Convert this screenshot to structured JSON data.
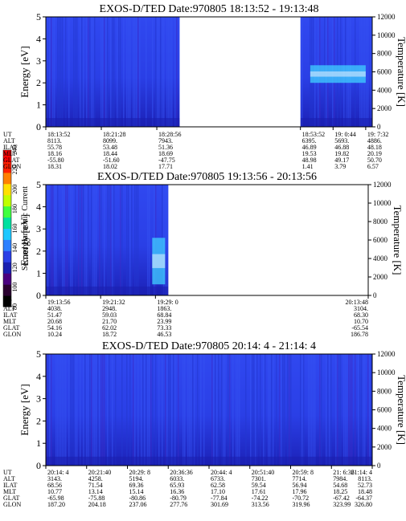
{
  "colors": {
    "background": "#ffffff",
    "spectrogram_base": "#2a3fe6",
    "spectrogram_low": "#1a1fb0",
    "spectrogram_mid": "#2d80ff",
    "band_light": "#40d0ff",
    "band_white": "#e8f0ff",
    "data_gap": "#ffffff",
    "axis": "#000000"
  },
  "colorbar": {
    "label": "Second Harmonic Current",
    "ticks": [
      "240",
      "220",
      "200",
      "180",
      "160",
      "140",
      "120",
      "100",
      "80"
    ],
    "colors": [
      "#000000",
      "#2a0030",
      "#4a0080",
      "#1a1fb0",
      "#2a3fe6",
      "#2d80ff",
      "#1ec8ff",
      "#00e0a0",
      "#40ff40",
      "#c0ff00",
      "#ffe000",
      "#ff8000",
      "#ff2000",
      "#ff0000"
    ]
  },
  "chart_data": [
    {
      "type": "heatmap",
      "title": "EXOS-D/TED   Date:970805   18:13:52 - 19:13:48",
      "ylabel": "Energy [eV]",
      "y2label": "Temperature [K]",
      "ylim": [
        0,
        5
      ],
      "y2lim": [
        0,
        12000
      ],
      "yticks": [
        "0",
        "1",
        "2",
        "3",
        "4",
        "5"
      ],
      "y2ticks": [
        "0",
        "2000",
        "4000",
        "6000",
        "8000",
        "10000",
        "12000"
      ],
      "data_gaps": [
        [
          0.41,
          0.78
        ]
      ],
      "bright_band": {
        "x_start": 0.81,
        "x_end": 0.98,
        "energy_low": 2.0,
        "energy_high": 2.8
      },
      "table": {
        "labels": [
          "UT",
          "ALT",
          "ILAT",
          "MLT",
          "GLAT",
          "GLON"
        ],
        "columns": [
          {
            "pos": 0.0,
            "values": [
              "18:13:52",
              "8113.",
              "55.78",
              "18.16",
              "-55.80",
              "18.31"
            ]
          },
          {
            "pos": 0.17,
            "values": [
              "18:21:28",
              "8099.",
              "53.48",
              "18.44",
              "-51.60",
              "18.02"
            ]
          },
          {
            "pos": 0.34,
            "values": [
              "18:28:56",
              "7943.",
              "51.36",
              "18.69",
              "-47.75",
              "17.71"
            ]
          },
          {
            "pos": 0.78,
            "values": [
              "18:53:52",
              "6395.",
              "46.89",
              "19.53",
              "48.98",
              "1.41"
            ]
          },
          {
            "pos": 0.88,
            "values": [
              "19: 0:44",
              "5693.",
              "46.88",
              "19.82",
              "49.17",
              "3.79"
            ]
          },
          {
            "pos": 0.98,
            "values": [
              "19: 7:32",
              "4886.",
              "48.18",
              "20.19",
              "50.70",
              "6.57"
            ]
          }
        ]
      }
    },
    {
      "type": "heatmap",
      "title": "EXOS-D/TED   Date:970805   19:13:56 - 20:13:56",
      "ylabel": "Energy [eV]",
      "y2label": "Temperature [K]",
      "ylim": [
        0,
        5
      ],
      "y2lim": [
        0,
        12000
      ],
      "yticks": [
        "0",
        "1",
        "2",
        "3",
        "4",
        "5"
      ],
      "y2ticks": [
        "0",
        "2000",
        "4000",
        "6000",
        "8000",
        "10000",
        "12000"
      ],
      "data_gaps": [
        [
          0.38,
          1.0
        ]
      ],
      "bright_band": {
        "x_start": 0.33,
        "x_end": 0.37,
        "energy_low": 0.5,
        "energy_high": 2.6
      },
      "table": {
        "labels": [
          "UT",
          "ALT",
          "ILAT",
          "MLT",
          "GLAT",
          "GLON"
        ],
        "columns": [
          {
            "pos": 0.0,
            "values": [
              "19:13:56",
              "4038.",
              "51.47",
              "20.68",
              "54.16",
              "10.24"
            ]
          },
          {
            "pos": 0.17,
            "values": [
              "19:21:32",
              "2948.",
              "59.03",
              "21.70",
              "62.02",
              "18.72"
            ]
          },
          {
            "pos": 0.34,
            "values": [
              "19:29: 0",
              "1863.",
              "68.84",
              "23.99",
              "73.33",
              "46.53"
            ]
          },
          {
            "pos": 1.0,
            "values": [
              "20:13:48",
              "3104.",
              "68.30",
              "10.70",
              "-65.54",
              "186.78"
            ]
          }
        ]
      }
    },
    {
      "type": "heatmap",
      "title": "EXOS-D/TED   Date:970805   20:14: 4 - 21:14: 4",
      "ylabel": "Energy [eV]",
      "y2label": "Temperature [K]",
      "ylim": [
        0,
        5
      ],
      "y2lim": [
        0,
        12000
      ],
      "yticks": [
        "0",
        "1",
        "2",
        "3",
        "4",
        "5"
      ],
      "y2ticks": [
        "0",
        "2000",
        "4000",
        "6000",
        "8000",
        "10000",
        "12000"
      ],
      "data_gaps": [],
      "bright_band": null,
      "table": {
        "labels": [
          "UT",
          "ALT",
          "ILAT",
          "MLT",
          "GLAT",
          "GLON"
        ],
        "columns": [
          {
            "pos": 0.0,
            "values": [
              "20:14: 4",
              "3143.",
              "68.56",
              "10.77",
              "-65.98",
              "187.20"
            ]
          },
          {
            "pos": 0.125,
            "values": [
              "20:21:40",
              "4258.",
              "71.54",
              "13.14",
              "-75.88",
              "204.18"
            ]
          },
          {
            "pos": 0.25,
            "values": [
              "20:29: 8",
              "5194.",
              "69.36",
              "15.14",
              "-80.86",
              "237.06"
            ]
          },
          {
            "pos": 0.375,
            "values": [
              "20:36:36",
              "6033.",
              "65.93",
              "16.36",
              "-80.79",
              "277.76"
            ]
          },
          {
            "pos": 0.5,
            "values": [
              "20:44: 4",
              "6733.",
              "62.58",
              "17.10",
              "-77.84",
              "301.69"
            ]
          },
          {
            "pos": 0.625,
            "values": [
              "20:51:40",
              "7301.",
              "59.54",
              "17.61",
              "-74.22",
              "313.56"
            ]
          },
          {
            "pos": 0.75,
            "values": [
              "20:59: 8",
              "7714.",
              "56.94",
              "17.96",
              "-70.72",
              "319.96"
            ]
          },
          {
            "pos": 0.875,
            "values": [
              "21: 6:36",
              "7984.",
              "54.68",
              "18.25",
              "-67.42",
              "323.99"
            ]
          },
          {
            "pos": 1.0,
            "values": [
              "21:14: 4",
              "8113.",
              "52.73",
              "18.48",
              "-64.37",
              "326.80"
            ]
          }
        ]
      }
    }
  ]
}
